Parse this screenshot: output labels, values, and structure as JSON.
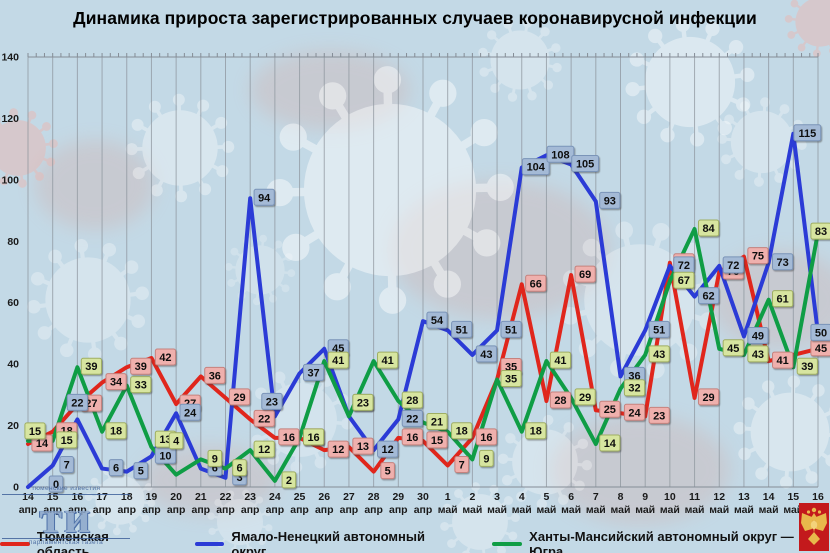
{
  "title": "Динамика прироста зарегистрированных случаев коронавирусной инфекции",
  "watermark_logo": {
    "top_text": "тюменские известия",
    "big_text": "ти",
    "bottom_text": "парламентская газета"
  },
  "legend": [
    {
      "label": "Тюменская область",
      "color": "#e0261c"
    },
    {
      "label": "Ямало-Ненецкий автономный округ",
      "color": "#2b3bd6"
    },
    {
      "label": "Ханты-Мансийский автономный округ — Югра",
      "color": "#0f9d45"
    }
  ],
  "chart_data": {
    "type": "line",
    "title": "Динамика прироста зарегистрированных случаев коронавирусной инфекции",
    "ylim": [
      0,
      140
    ],
    "y_ticks": [
      0,
      20,
      40,
      60,
      80,
      100,
      120,
      140
    ],
    "grid": "vertical-only",
    "legend_position": "bottom",
    "x_categories": [
      {
        "day": "14",
        "month": "апр"
      },
      {
        "day": "15",
        "month": "апр"
      },
      {
        "day": "16",
        "month": "апр"
      },
      {
        "day": "17",
        "month": "апр"
      },
      {
        "day": "18",
        "month": "апр"
      },
      {
        "day": "19",
        "month": "апр"
      },
      {
        "day": "20",
        "month": "апр"
      },
      {
        "day": "21",
        "month": "апр"
      },
      {
        "day": "22",
        "month": "апр"
      },
      {
        "day": "23",
        "month": "апр"
      },
      {
        "day": "24",
        "month": "апр"
      },
      {
        "day": "25",
        "month": "апр"
      },
      {
        "day": "26",
        "month": "апр"
      },
      {
        "day": "27",
        "month": "апр"
      },
      {
        "day": "28",
        "month": "апр"
      },
      {
        "day": "29",
        "month": "апр"
      },
      {
        "day": "30",
        "month": "апр"
      },
      {
        "day": "1",
        "month": "май"
      },
      {
        "day": "2",
        "month": "май"
      },
      {
        "day": "3",
        "month": "май"
      },
      {
        "day": "4",
        "month": "май"
      },
      {
        "day": "5",
        "month": "май"
      },
      {
        "day": "6",
        "month": "май"
      },
      {
        "day": "7",
        "month": "май"
      },
      {
        "day": "8",
        "month": "май"
      },
      {
        "day": "9",
        "month": "май"
      },
      {
        "day": "10",
        "month": "май"
      },
      {
        "day": "11",
        "month": "май"
      },
      {
        "day": "12",
        "month": "май"
      },
      {
        "day": "13",
        "month": "май"
      },
      {
        "day": "14",
        "month": "май"
      },
      {
        "day": "15",
        "month": "май"
      },
      {
        "day": "16",
        "month": "май"
      }
    ],
    "series": [
      {
        "key": "tyumen",
        "name": "Тюменская область",
        "color": "#e0261c",
        "label_bg": "#efb0ad",
        "label_border": "#c5827e",
        "values": [
          14,
          18,
          27,
          34,
          39,
          42,
          27,
          36,
          29,
          22,
          16,
          16,
          12,
          13,
          5,
          16,
          15,
          7,
          16,
          35,
          66,
          28,
          69,
          25,
          24,
          23,
          73,
          29,
          70,
          75,
          41,
          43,
          45
        ],
        "no_label_idx": [
          31
        ],
        "label_overrides": {
          "19": {
            "dy": -13
          },
          "32": {
            "dx": 3
          }
        }
      },
      {
        "key": "yanao",
        "name": "Ямало-Ненецкий автономный округ",
        "color": "#2b3bd6",
        "label_bg": "#a4bad6",
        "label_border": "#7a94b8",
        "values": [
          0,
          7,
          22,
          6,
          5,
          10,
          24,
          6,
          3,
          94,
          23,
          37,
          45,
          23,
          12,
          22,
          54,
          51,
          43,
          51,
          104,
          108,
          105,
          93,
          36,
          51,
          72,
          62,
          72,
          49,
          73,
          115,
          50
        ],
        "no_label_idx": [],
        "label_overrides": {
          "0": {
            "dx": 28,
            "dy": -3
          },
          "2": {
            "dx": 0,
            "dy": -17
          },
          "10": {
            "dx": -3,
            "dy": -15
          },
          "13": {
            "dy": -14
          },
          "32": {
            "dx": 3
          }
        }
      },
      {
        "key": "khmao",
        "name": "Ханты-Мансийский автономный округ — Югра",
        "color": "#0f9d45",
        "label_bg": "#d7e5a0",
        "label_border": "#9fae62",
        "values": [
          15,
          15,
          39,
          18,
          33,
          13,
          4,
          9,
          6,
          12,
          2,
          16,
          41,
          23,
          41,
          28,
          21,
          18,
          9,
          35,
          18,
          41,
          29,
          14,
          32,
          43,
          67,
          84,
          45,
          43,
          61,
          39,
          83
        ],
        "no_label_idx": [],
        "label_overrides": {
          "0": {
            "dx": 7,
            "dy": -10
          },
          "5": {
            "dy": -8
          },
          "6": {
            "dx": 0,
            "dy": -34
          },
          "13": {
            "dy": -14
          },
          "32": {
            "dx": 3
          }
        }
      }
    ]
  }
}
